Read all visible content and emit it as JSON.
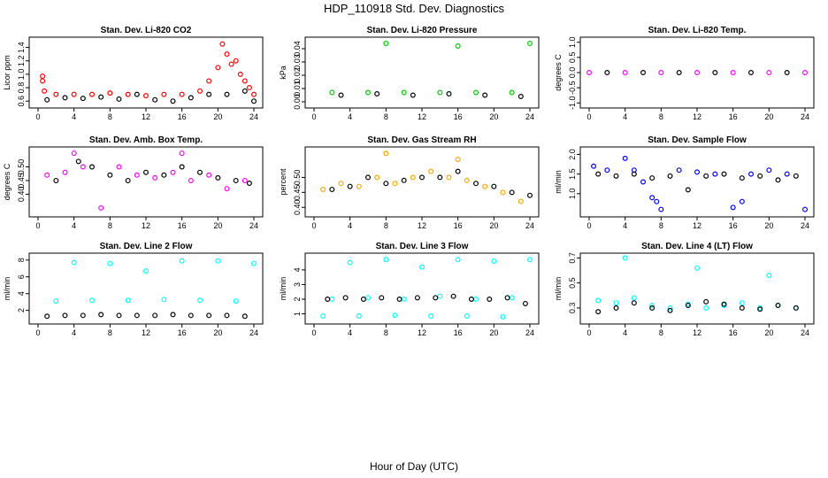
{
  "figure": {
    "title": "HDP_110918  Std. Dev. Diagnostics",
    "xlabel": "Hour of Day (UTC)"
  },
  "chart_data": [
    {
      "type": "scatter",
      "title": "Stan. Dev. Li-820 CO2",
      "ylabel": "Licor ppm",
      "xlim": [
        0,
        24
      ],
      "ylim": [
        0.55,
        1.5
      ],
      "xticks": [
        0,
        4,
        8,
        12,
        16,
        20,
        24
      ],
      "yticks": [
        0.6,
        0.8,
        1.0,
        1.2,
        1.4
      ],
      "ytick_labels": [
        "0.6",
        "0.8",
        "1.0",
        "1.2",
        "1.4"
      ],
      "series": [
        {
          "color": "#ff0000",
          "x": [
            0.5,
            0.5,
            0.7,
            2,
            4,
            6,
            8,
            10,
            12,
            14,
            16,
            18,
            19,
            20,
            20.5,
            21,
            21.5,
            22,
            22.5,
            23,
            23.5,
            24
          ],
          "y": [
            0.97,
            0.9,
            0.75,
            0.7,
            0.7,
            0.7,
            0.72,
            0.7,
            0.68,
            0.7,
            0.7,
            0.75,
            0.9,
            1.1,
            1.45,
            1.3,
            1.15,
            1.2,
            1.0,
            0.9,
            0.8,
            0.7
          ]
        },
        {
          "color": "#000000",
          "x": [
            1,
            3,
            5,
            7,
            9,
            11,
            13,
            15,
            17,
            19,
            21,
            23,
            24
          ],
          "y": [
            0.62,
            0.65,
            0.64,
            0.66,
            0.63,
            0.7,
            0.62,
            0.6,
            0.65,
            0.7,
            0.7,
            0.75,
            0.6
          ]
        }
      ]
    },
    {
      "type": "scatter",
      "title": "Stan. Dev. Li-820 Pressure",
      "ylabel": "kPa",
      "xlim": [
        0,
        24
      ],
      "ylim": [
        -0.002,
        0.046
      ],
      "xticks": [
        0,
        4,
        8,
        12,
        16,
        20,
        24
      ],
      "yticks": [
        0,
        0.01,
        0.02,
        0.03,
        0.04
      ],
      "ytick_labels": [
        "0.00",
        "0.01",
        "0.02",
        "0.03",
        "0.04"
      ],
      "series": [
        {
          "color": "#00cc00",
          "x": [
            8,
            16,
            24,
            2,
            6,
            10,
            14,
            18,
            22
          ],
          "y": [
            0.044,
            0.042,
            0.044,
            0.007,
            0.007,
            0.007,
            0.007,
            0.007,
            0.007
          ]
        },
        {
          "color": "#000000",
          "x": [
            3,
            7,
            11,
            15,
            19,
            23
          ],
          "y": [
            0.005,
            0.006,
            0.005,
            0.006,
            0.005,
            0.004
          ]
        }
      ]
    },
    {
      "type": "scatter",
      "title": "Stan. Dev. Li-820 Temp.",
      "ylabel": "degrees C",
      "xlim": [
        0,
        24
      ],
      "ylim": [
        -1.05,
        1.05
      ],
      "xticks": [
        0,
        4,
        8,
        12,
        16,
        20,
        24
      ],
      "yticks": [
        -1.0,
        -0.5,
        0.0,
        0.5,
        1.0
      ],
      "ytick_labels": [
        "-1.0",
        "-0.5",
        "0.0",
        "0.5",
        "1.0"
      ],
      "series": [
        {
          "color": "#ff00ff",
          "x": [
            0,
            4,
            8,
            12,
            16,
            20,
            24
          ],
          "y": [
            0,
            0,
            0,
            0,
            0,
            0,
            0
          ]
        },
        {
          "color": "#000000",
          "x": [
            2,
            6,
            10,
            14,
            18,
            22
          ],
          "y": [
            0,
            0,
            0,
            0,
            0,
            0
          ]
        }
      ]
    },
    {
      "type": "scatter",
      "title": "Stan. Dev. Amb. Box Temp.",
      "ylabel": "degrees C",
      "xlim": [
        0,
        24
      ],
      "ylim": [
        0.33,
        0.56
      ],
      "xticks": [
        0,
        4,
        8,
        12,
        16,
        20,
        24
      ],
      "yticks": [
        0.4,
        0.45,
        0.5
      ],
      "ytick_labels": [
        "0.40",
        "0.45",
        "0.50"
      ],
      "series": [
        {
          "color": "#ff00ff",
          "x": [
            1,
            3,
            4,
            5,
            7,
            9,
            11,
            13,
            15,
            16,
            17,
            19,
            21,
            23
          ],
          "y": [
            0.47,
            0.48,
            0.55,
            0.5,
            0.35,
            0.5,
            0.47,
            0.46,
            0.48,
            0.55,
            0.45,
            0.47,
            0.42,
            0.45
          ]
        },
        {
          "color": "#000000",
          "x": [
            2,
            4.5,
            6,
            8,
            10,
            12,
            14,
            16,
            18,
            20,
            22,
            23.5
          ],
          "y": [
            0.45,
            0.52,
            0.5,
            0.47,
            0.45,
            0.48,
            0.47,
            0.5,
            0.48,
            0.46,
            0.45,
            0.44
          ]
        }
      ]
    },
    {
      "type": "scatter",
      "title": "Stan. Dev. Gas Stream RH",
      "ylabel": "percent",
      "xlim": [
        0,
        24
      ],
      "ylim": [
        0.38,
        0.59
      ],
      "xticks": [
        0,
        4,
        8,
        12,
        16,
        20,
        24
      ],
      "yticks": [
        0.4,
        0.45,
        0.5
      ],
      "ytick_labels": [
        "0.40",
        "0.45",
        "0.50"
      ],
      "series": [
        {
          "color": "#ffa500",
          "x": [
            1,
            3,
            5,
            7,
            8,
            9,
            11,
            13,
            15,
            16,
            17,
            19,
            21,
            23
          ],
          "y": [
            0.46,
            0.48,
            0.47,
            0.5,
            0.58,
            0.48,
            0.5,
            0.52,
            0.5,
            0.56,
            0.49,
            0.47,
            0.45,
            0.42
          ]
        },
        {
          "color": "#000000",
          "x": [
            2,
            4,
            6,
            8,
            10,
            12,
            14,
            16,
            18,
            20,
            22,
            24
          ],
          "y": [
            0.46,
            0.47,
            0.5,
            0.48,
            0.49,
            0.5,
            0.5,
            0.52,
            0.48,
            0.47,
            0.45,
            0.44
          ]
        }
      ]
    },
    {
      "type": "scatter",
      "title": "Stan. Dev. Sample Flow",
      "ylabel": "ml/min",
      "xlim": [
        0,
        24
      ],
      "ylim": [
        0.5,
        2.1
      ],
      "xticks": [
        0,
        4,
        8,
        12,
        16,
        20,
        24
      ],
      "yticks": [
        1.0,
        1.5,
        2.0
      ],
      "ytick_labels": [
        "1.0",
        "1.5",
        "2.0"
      ],
      "series": [
        {
          "color": "#0000ff",
          "x": [
            0.5,
            2,
            4,
            5,
            6,
            7,
            7.5,
            8,
            10,
            12,
            14,
            16,
            17,
            18,
            20,
            22,
            24
          ],
          "y": [
            1.7,
            1.6,
            1.9,
            1.6,
            1.3,
            0.9,
            0.8,
            0.6,
            1.6,
            1.55,
            1.5,
            0.65,
            0.8,
            1.5,
            1.6,
            1.5,
            0.6
          ]
        },
        {
          "color": "#000000",
          "x": [
            1,
            3,
            5,
            7,
            9,
            11,
            13,
            15,
            17,
            19,
            21,
            23
          ],
          "y": [
            1.5,
            1.45,
            1.5,
            1.4,
            1.45,
            1.1,
            1.45,
            1.5,
            1.4,
            1.45,
            1.35,
            1.45
          ]
        }
      ]
    },
    {
      "type": "scatter",
      "title": "Stan. Dev. Line 2 Flow",
      "ylabel": "ml/min",
      "xlim": [
        0,
        24
      ],
      "ylim": [
        0.8,
        8.4
      ],
      "xticks": [
        0,
        4,
        8,
        12,
        16,
        20,
        24
      ],
      "yticks": [
        2,
        4,
        6,
        8
      ],
      "ytick_labels": [
        "2",
        "4",
        "6",
        "8"
      ],
      "series": [
        {
          "color": "#00ffff",
          "x": [
            4,
            8,
            12,
            16,
            20,
            24,
            2,
            6,
            10,
            14,
            18,
            22
          ],
          "y": [
            7.7,
            7.6,
            6.7,
            7.9,
            7.9,
            7.6,
            3.1,
            3.2,
            3.2,
            3.3,
            3.2,
            3.1
          ]
        },
        {
          "color": "#000000",
          "x": [
            1,
            3,
            5,
            7,
            9,
            11,
            13,
            15,
            17,
            19,
            21,
            23
          ],
          "y": [
            1.3,
            1.4,
            1.4,
            1.5,
            1.4,
            1.4,
            1.4,
            1.5,
            1.4,
            1.4,
            1.4,
            1.3
          ]
        }
      ]
    },
    {
      "type": "scatter",
      "title": "Stan. Dev. Line 3 Flow",
      "ylabel": "ml/min",
      "xlim": [
        0,
        24
      ],
      "ylim": [
        0.55,
        4.9
      ],
      "xticks": [
        0,
        4,
        8,
        12,
        16,
        20,
        24
      ],
      "yticks": [
        1,
        2,
        3,
        4
      ],
      "ytick_labels": [
        "1",
        "2",
        "3",
        "4"
      ],
      "series": [
        {
          "color": "#00ffff",
          "x": [
            4,
            8,
            12,
            16,
            20,
            24,
            2,
            6,
            10,
            14,
            18,
            22,
            1,
            5,
            9,
            13,
            17,
            21
          ],
          "y": [
            4.5,
            4.7,
            4.2,
            4.7,
            4.6,
            4.7,
            2.0,
            2.1,
            2.0,
            2.2,
            2.0,
            2.1,
            0.85,
            0.85,
            0.9,
            0.85,
            0.85,
            0.8
          ]
        },
        {
          "color": "#000000",
          "x": [
            1.5,
            3.5,
            5.5,
            7.5,
            9.5,
            11.5,
            13.5,
            15.5,
            17.5,
            19.5,
            21.5,
            23.5
          ],
          "y": [
            2.0,
            2.1,
            2.0,
            2.1,
            2.0,
            2.1,
            2.1,
            2.2,
            2.0,
            2.0,
            2.1,
            1.7
          ]
        }
      ]
    },
    {
      "type": "scatter",
      "title": "Stan. Dev. Line 4 (LT) Flow",
      "ylabel": "ml/min",
      "xlim": [
        0,
        24
      ],
      "ylim": [
        0.2,
        0.71
      ],
      "xticks": [
        0,
        4,
        8,
        12,
        16,
        20,
        24
      ],
      "yticks": [
        0.3,
        0.5,
        0.7
      ],
      "ytick_labels": [
        "0.3",
        "0.5",
        "0.7"
      ],
      "series": [
        {
          "color": "#00ffff",
          "x": [
            4,
            12,
            20,
            1,
            3,
            5,
            7,
            9,
            11,
            13,
            15,
            17,
            19,
            21,
            23
          ],
          "y": [
            0.7,
            0.62,
            0.56,
            0.36,
            0.34,
            0.38,
            0.32,
            0.3,
            0.33,
            0.3,
            0.32,
            0.34,
            0.3,
            0.32,
            0.3
          ]
        },
        {
          "color": "#000000",
          "x": [
            1,
            3,
            5,
            7,
            9,
            11,
            13,
            15,
            17,
            19,
            21,
            23
          ],
          "y": [
            0.27,
            0.3,
            0.34,
            0.3,
            0.28,
            0.32,
            0.35,
            0.33,
            0.3,
            0.29,
            0.32,
            0.3
          ]
        }
      ]
    }
  ]
}
